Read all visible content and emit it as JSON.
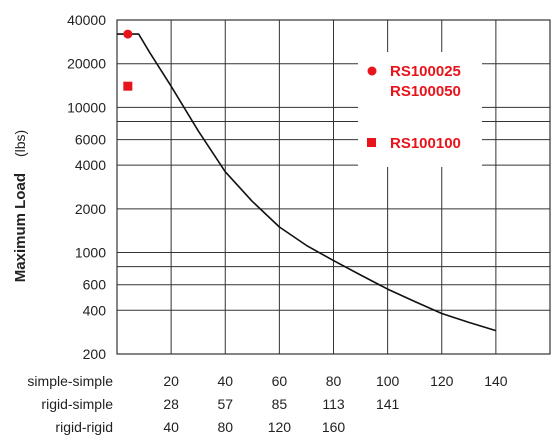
{
  "chart_data": {
    "type": "line",
    "ylabel": "Maximum Load",
    "yunit": "(lbs)",
    "yscale": "log",
    "ylim": [
      200,
      40000
    ],
    "xlim": [
      0,
      160
    ],
    "y_ticks": [
      200,
      400,
      600,
      1000,
      2000,
      4000,
      6000,
      10000,
      20000,
      40000
    ],
    "y_tick_labels": [
      "200",
      "400",
      "600",
      "1000",
      "2000",
      "4000",
      "6000",
      "10000",
      "20000",
      "40000"
    ],
    "grid": true,
    "x_axes": [
      {
        "label": "simple-simple",
        "ticks": [
          20,
          40,
          60,
          80,
          100,
          120,
          140
        ],
        "tick_labels": [
          "20",
          "40",
          "60",
          "80",
          "100",
          "120",
          "140"
        ]
      },
      {
        "label": "rigid-simple",
        "ticks": [
          20,
          40,
          60,
          80,
          100
        ],
        "tick_labels": [
          "28",
          "57",
          "85",
          "113",
          "141"
        ]
      },
      {
        "label": "rigid-rigid",
        "ticks": [
          20,
          40,
          60,
          80
        ],
        "tick_labels": [
          "40",
          "80",
          "120",
          "160"
        ]
      }
    ],
    "series": [
      {
        "x": [
          0,
          8,
          12,
          20,
          30,
          40,
          50,
          60,
          70,
          80,
          90,
          100,
          110,
          120,
          130,
          140
        ],
        "y": [
          32000,
          32000,
          24000,
          14000,
          6900,
          3600,
          2250,
          1500,
          1120,
          880,
          700,
          560,
          460,
          380,
          330,
          290
        ]
      }
    ],
    "markers": [
      {
        "shape": "circle",
        "x": 4,
        "y": 32000,
        "color": "#e8141b"
      },
      {
        "shape": "square",
        "x": 4,
        "y": 14000,
        "color": "#e8141b"
      }
    ],
    "legend": {
      "placement": "top-right",
      "entries": [
        {
          "marker": "circle",
          "labels": [
            "RS100025",
            "RS100050"
          ],
          "color": "#e8141b"
        },
        {
          "marker": "square",
          "labels": [
            "RS100100"
          ],
          "color": "#e8141b"
        }
      ]
    }
  }
}
